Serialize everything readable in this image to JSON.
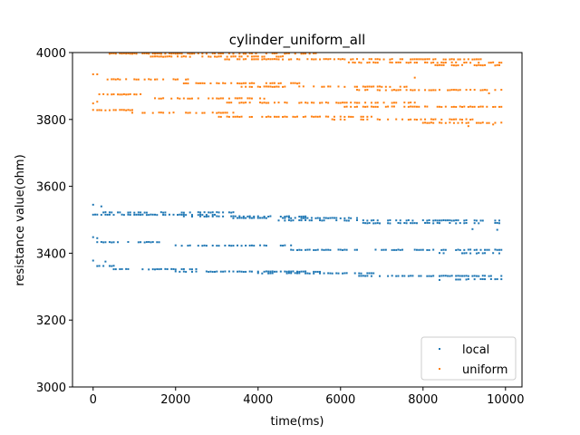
{
  "chart_data": {
    "type": "scatter",
    "title": "cylinder_uniform_all",
    "xlabel": "time(ms)",
    "ylabel": "resistance value(ohm)",
    "xlim": [
      -500,
      10400
    ],
    "ylim": [
      3000,
      4000
    ],
    "xticks": [
      0,
      2000,
      4000,
      6000,
      8000,
      10000
    ],
    "yticks": [
      3000,
      3200,
      3400,
      3600,
      3800,
      4000
    ],
    "grid": false,
    "legend_position": "lower-right",
    "series": [
      {
        "name": "local",
        "color": "#1f77b4",
        "x_range": [
          0,
          9900
        ],
        "sample_interval_ms": 50,
        "levels": [
          {
            "y": 3522,
            "x_range": [
              0,
              3400
            ]
          },
          {
            "y": 3515,
            "x_range": [
              0,
              3000
            ]
          },
          {
            "y": 3510,
            "x_range": [
              2200,
              5200
            ]
          },
          {
            "y": 3505,
            "x_range": [
              3400,
              6400
            ]
          },
          {
            "y": 3498,
            "x_range": [
              4500,
              9900
            ]
          },
          {
            "y": 3490,
            "x_range": [
              6500,
              9900
            ]
          },
          {
            "y": 3433,
            "x_range": [
              0,
              1800
            ]
          },
          {
            "y": 3423,
            "x_range": [
              2000,
              4800
            ]
          },
          {
            "y": 3410,
            "x_range": [
              4800,
              9900
            ]
          },
          {
            "y": 3400,
            "x_range": [
              8400,
              9900
            ]
          },
          {
            "y": 3362,
            "x_range": [
              0,
              500
            ]
          },
          {
            "y": 3352,
            "x_range": [
              500,
              2500
            ]
          },
          {
            "y": 3345,
            "x_range": [
              2000,
              5500
            ]
          },
          {
            "y": 3340,
            "x_range": [
              4000,
              6800
            ]
          },
          {
            "y": 3332,
            "x_range": [
              6400,
              9900
            ]
          },
          {
            "y": 3322,
            "x_range": [
              8800,
              9900
            ]
          }
        ],
        "outliers": [
          [
            0,
            3545
          ],
          [
            0,
            3378
          ],
          [
            0,
            3448
          ],
          [
            200,
            3540
          ],
          [
            100,
            3445
          ],
          [
            300,
            3375
          ],
          [
            9800,
            3470
          ],
          [
            9200,
            3472
          ],
          [
            8400,
            3320
          ]
        ]
      },
      {
        "name": "uniform",
        "color": "#ff7f0e",
        "x_range": [
          0,
          9900
        ],
        "sample_interval_ms": 50,
        "levels": [
          {
            "y": 3997,
            "x_range": [
              400,
              5400
            ]
          },
          {
            "y": 3988,
            "x_range": [
              1400,
              4600
            ]
          },
          {
            "y": 3980,
            "x_range": [
              3200,
              9600
            ]
          },
          {
            "y": 3970,
            "x_range": [
              6200,
              9900
            ]
          },
          {
            "y": 3962,
            "x_range": [
              8300,
              9900
            ]
          },
          {
            "y": 3920,
            "x_range": [
              0,
              2400
            ]
          },
          {
            "y": 3908,
            "x_range": [
              2000,
              5000
            ]
          },
          {
            "y": 3898,
            "x_range": [
              3600,
              7600
            ]
          },
          {
            "y": 3888,
            "x_range": [
              6400,
              9900
            ]
          },
          {
            "y": 3875,
            "x_range": [
              0,
              1300
            ]
          },
          {
            "y": 3863,
            "x_range": [
              1200,
              4400
            ]
          },
          {
            "y": 3850,
            "x_range": [
              3200,
              7800
            ]
          },
          {
            "y": 3838,
            "x_range": [
              6000,
              9900
            ]
          },
          {
            "y": 3828,
            "x_range": [
              0,
              1000
            ]
          },
          {
            "y": 3820,
            "x_range": [
              900,
              3400
            ]
          },
          {
            "y": 3808,
            "x_range": [
              3000,
              6800
            ]
          },
          {
            "y": 3800,
            "x_range": [
              5800,
              9200
            ]
          },
          {
            "y": 3790,
            "x_range": [
              7800,
              9900
            ]
          }
        ],
        "outliers": [
          [
            0,
            3935
          ],
          [
            100,
            3935
          ],
          [
            0,
            3848
          ],
          [
            100,
            3853
          ],
          [
            9100,
            3780
          ],
          [
            9700,
            3785
          ],
          [
            7800,
            3925
          ],
          [
            9600,
            3878
          ]
        ]
      }
    ]
  }
}
